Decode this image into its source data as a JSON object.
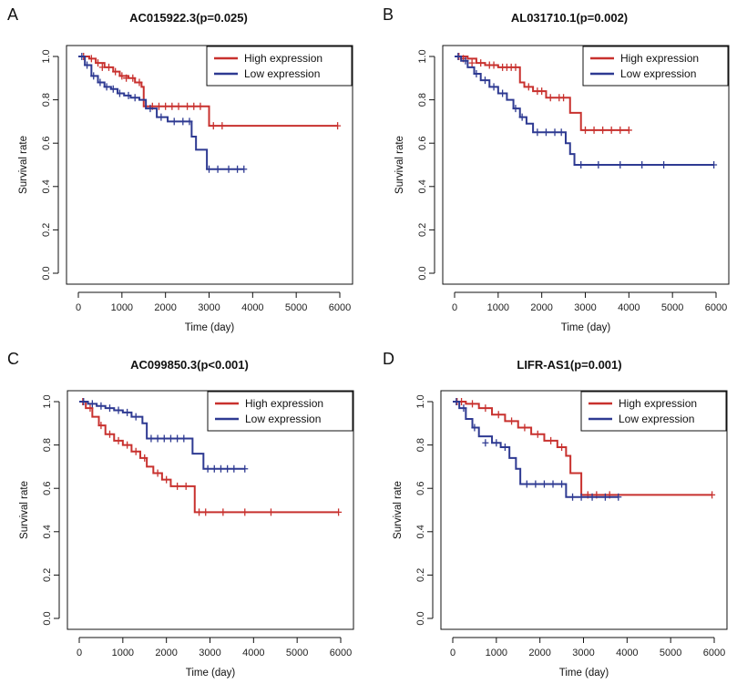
{
  "colors": {
    "high": "#c8312e",
    "low": "#2e3a92"
  },
  "chart_data": [
    {
      "type": "line",
      "panel_label": "A",
      "title": "AC015922.3(p=0.025)",
      "xlabel": "Time (day)",
      "ylabel": "Survival rate",
      "xlim": [
        0,
        6000
      ],
      "ylim": [
        0,
        1
      ],
      "x_ticks": [
        "0",
        "1000",
        "2000",
        "3000",
        "4000",
        "5000",
        "6000"
      ],
      "y_ticks": [
        "0.0",
        "0.2",
        "0.4",
        "0.6",
        "0.8",
        "1.0"
      ],
      "legend": "top-right",
      "series": [
        {
          "name": "High expression",
          "color": "high",
          "x": [
            0,
            250,
            400,
            600,
            800,
            950,
            1150,
            1300,
            1450,
            1500,
            1600,
            3000,
            5950
          ],
          "y": [
            1.0,
            0.99,
            0.97,
            0.95,
            0.93,
            0.91,
            0.9,
            0.88,
            0.86,
            0.77,
            0.77,
            0.68,
            0.68
          ],
          "censor_x": [
            120,
            300,
            450,
            550,
            700,
            850,
            1000,
            1100,
            1250,
            1400,
            1700,
            1850,
            2000,
            2150,
            2300,
            2500,
            2650,
            2800,
            3100,
            3300,
            5950
          ],
          "censor_y": [
            1.0,
            0.99,
            0.97,
            0.95,
            0.95,
            0.93,
            0.91,
            0.9,
            0.9,
            0.88,
            0.77,
            0.77,
            0.77,
            0.77,
            0.77,
            0.77,
            0.77,
            0.77,
            0.68,
            0.68,
            0.68
          ]
        },
        {
          "name": "Low expression",
          "color": "low",
          "x": [
            0,
            150,
            300,
            450,
            600,
            750,
            900,
            1050,
            1200,
            1400,
            1550,
            1800,
            2050,
            2600,
            2700,
            2950,
            3800
          ],
          "y": [
            1.0,
            0.96,
            0.91,
            0.88,
            0.86,
            0.85,
            0.83,
            0.82,
            0.81,
            0.8,
            0.76,
            0.72,
            0.7,
            0.63,
            0.57,
            0.48,
            0.48
          ],
          "censor_x": [
            80,
            200,
            350,
            500,
            650,
            800,
            950,
            1150,
            1300,
            1650,
            1900,
            2200,
            2400,
            2550,
            3000,
            3200,
            3450,
            3650,
            3800
          ],
          "censor_y": [
            1.0,
            0.96,
            0.91,
            0.88,
            0.86,
            0.85,
            0.83,
            0.82,
            0.81,
            0.76,
            0.72,
            0.7,
            0.7,
            0.7,
            0.48,
            0.48,
            0.48,
            0.48,
            0.48
          ]
        }
      ]
    },
    {
      "type": "line",
      "panel_label": "B",
      "title": "AL031710.1(p=0.002)",
      "xlabel": "Time (day)",
      "ylabel": "Survival rate",
      "xlim": [
        0,
        6000
      ],
      "ylim": [
        0,
        1
      ],
      "x_ticks": [
        "0",
        "1000",
        "2000",
        "3000",
        "4000",
        "5000",
        "6000"
      ],
      "y_ticks": [
        "0.0",
        "0.2",
        "0.4",
        "0.6",
        "0.8",
        "1.0"
      ],
      "legend": "top-right",
      "series": [
        {
          "name": "High expression",
          "color": "high",
          "x": [
            0,
            300,
            500,
            700,
            1000,
            1500,
            1600,
            1800,
            2100,
            2650,
            2900,
            4000
          ],
          "y": [
            1.0,
            0.99,
            0.97,
            0.96,
            0.95,
            0.88,
            0.86,
            0.84,
            0.81,
            0.74,
            0.66,
            0.66
          ],
          "censor_x": [
            100,
            200,
            400,
            600,
            800,
            900,
            1100,
            1200,
            1300,
            1400,
            1700,
            1900,
            2000,
            2200,
            2400,
            2500,
            3000,
            3200,
            3400,
            3600,
            3800,
            4000
          ],
          "censor_y": [
            1.0,
            0.99,
            0.97,
            0.97,
            0.96,
            0.96,
            0.95,
            0.95,
            0.95,
            0.95,
            0.86,
            0.84,
            0.84,
            0.81,
            0.81,
            0.81,
            0.66,
            0.66,
            0.66,
            0.66,
            0.66,
            0.66
          ]
        },
        {
          "name": "Low expression",
          "color": "low",
          "x": [
            0,
            150,
            300,
            450,
            600,
            800,
            1000,
            1200,
            1350,
            1500,
            1650,
            1800,
            2550,
            2650,
            2750,
            5950
          ],
          "y": [
            1.0,
            0.98,
            0.95,
            0.92,
            0.89,
            0.86,
            0.83,
            0.8,
            0.76,
            0.72,
            0.69,
            0.65,
            0.6,
            0.55,
            0.5,
            0.5
          ],
          "censor_x": [
            80,
            250,
            500,
            700,
            900,
            1100,
            1400,
            1550,
            1900,
            2100,
            2300,
            2450,
            2900,
            3300,
            3800,
            4300,
            4800,
            5950
          ],
          "censor_y": [
            1.0,
            0.98,
            0.92,
            0.89,
            0.86,
            0.83,
            0.76,
            0.72,
            0.65,
            0.65,
            0.65,
            0.65,
            0.5,
            0.5,
            0.5,
            0.5,
            0.5,
            0.5
          ]
        }
      ]
    },
    {
      "type": "line",
      "panel_label": "C",
      "title": "AC099850.3(p<0.001)",
      "xlabel": "Time (day)",
      "ylabel": "Survival rate",
      "xlim": [
        0,
        6000
      ],
      "ylim": [
        0,
        1
      ],
      "x_ticks": [
        "0",
        "1000",
        "2000",
        "3000",
        "4000",
        "5000",
        "6000"
      ],
      "y_ticks": [
        "0.0",
        "0.2",
        "0.4",
        "0.6",
        "0.8",
        "1.0"
      ],
      "legend": "top-right",
      "series": [
        {
          "name": "High expression",
          "color": "high",
          "x": [
            0,
            150,
            300,
            450,
            600,
            800,
            1000,
            1200,
            1400,
            1550,
            1700,
            1900,
            2100,
            2650,
            5950
          ],
          "y": [
            1.0,
            0.97,
            0.93,
            0.89,
            0.85,
            0.82,
            0.8,
            0.77,
            0.74,
            0.7,
            0.67,
            0.64,
            0.61,
            0.49,
            0.49
          ],
          "censor_x": [
            80,
            250,
            500,
            700,
            900,
            1100,
            1300,
            1500,
            1800,
            2000,
            2250,
            2450,
            2750,
            2900,
            3300,
            3800,
            4400,
            5950
          ],
          "censor_y": [
            1.0,
            0.97,
            0.89,
            0.85,
            0.82,
            0.8,
            0.77,
            0.74,
            0.67,
            0.64,
            0.61,
            0.61,
            0.49,
            0.49,
            0.49,
            0.49,
            0.49,
            0.49
          ]
        },
        {
          "name": "Low expression",
          "color": "low",
          "x": [
            0,
            200,
            400,
            600,
            800,
            1000,
            1200,
            1450,
            1550,
            2600,
            2850,
            3000,
            3800
          ],
          "y": [
            1.0,
            0.99,
            0.98,
            0.97,
            0.96,
            0.95,
            0.93,
            0.9,
            0.83,
            0.76,
            0.69,
            0.69,
            0.69
          ],
          "censor_x": [
            100,
            300,
            500,
            700,
            900,
            1100,
            1300,
            1650,
            1800,
            1950,
            2100,
            2250,
            2400,
            2950,
            3100,
            3250,
            3400,
            3550,
            3800
          ],
          "censor_y": [
            1.0,
            0.99,
            0.98,
            0.97,
            0.96,
            0.95,
            0.93,
            0.83,
            0.83,
            0.83,
            0.83,
            0.83,
            0.83,
            0.69,
            0.69,
            0.69,
            0.69,
            0.69,
            0.69
          ]
        }
      ]
    },
    {
      "type": "line",
      "panel_label": "D",
      "title": "LIFR-AS1(p=0.001)",
      "xlabel": "Time (day)",
      "ylabel": "Survival rate",
      "xlim": [
        0,
        6000
      ],
      "ylim": [
        0,
        1
      ],
      "x_ticks": [
        "0",
        "1000",
        "2000",
        "3000",
        "4000",
        "5000",
        "6000"
      ],
      "y_ticks": [
        "0.0",
        "0.2",
        "0.4",
        "0.6",
        "0.8",
        "1.0"
      ],
      "legend": "top-right",
      "series": [
        {
          "name": "High expression",
          "color": "high",
          "x": [
            0,
            300,
            600,
            900,
            1200,
            1500,
            1800,
            2100,
            2400,
            2600,
            2700,
            2950,
            5950
          ],
          "y": [
            1.0,
            0.99,
            0.97,
            0.94,
            0.91,
            0.88,
            0.85,
            0.82,
            0.79,
            0.75,
            0.67,
            0.57,
            0.57
          ],
          "censor_x": [
            100,
            200,
            450,
            750,
            1050,
            1350,
            1650,
            1950,
            2250,
            2500,
            3100,
            3300,
            3600,
            5950
          ],
          "censor_y": [
            1.0,
            1.0,
            0.99,
            0.97,
            0.94,
            0.91,
            0.88,
            0.85,
            0.82,
            0.79,
            0.57,
            0.57,
            0.57,
            0.57
          ]
        },
        {
          "name": "Low expression",
          "color": "low",
          "x": [
            0,
            150,
            300,
            450,
            600,
            900,
            1100,
            1300,
            1450,
            1550,
            2600,
            3800
          ],
          "y": [
            1.0,
            0.97,
            0.92,
            0.88,
            0.84,
            0.81,
            0.79,
            0.74,
            0.69,
            0.62,
            0.56,
            0.56
          ],
          "censor_x": [
            80,
            250,
            500,
            750,
            1000,
            1200,
            1700,
            1900,
            2100,
            2300,
            2500,
            2750,
            2950,
            3200,
            3500,
            3800
          ],
          "censor_y": [
            1.0,
            0.97,
            0.88,
            0.81,
            0.81,
            0.79,
            0.62,
            0.62,
            0.62,
            0.62,
            0.62,
            0.56,
            0.56,
            0.56,
            0.56,
            0.56
          ]
        }
      ]
    }
  ]
}
